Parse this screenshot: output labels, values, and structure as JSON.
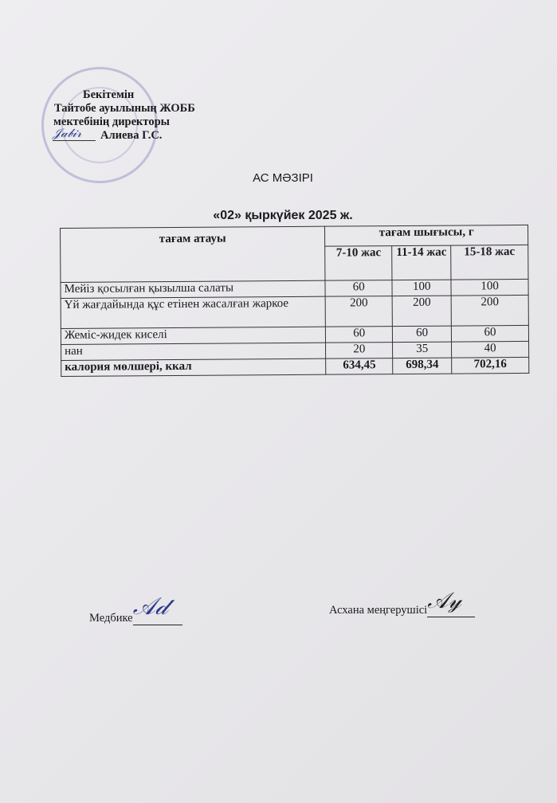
{
  "approval": {
    "line1": "Бекітемін",
    "line2": "Тайтобе ауылының ЖОББ",
    "line3": "мектебінің директоры",
    "line4": "Алиева Г.С."
  },
  "title": "АС МӘЗІРІ",
  "date": "«02»  қыркүйек  2025 ж.",
  "table": {
    "header_name": "тағам атауы",
    "header_output": "тағам шығысы, г",
    "age_groups": [
      "7-10 жас",
      "11-14 жас",
      "15-18 жас"
    ],
    "rows": [
      {
        "name": "Мейіз қосылған қызылша салаты",
        "values": [
          "60",
          "100",
          "100"
        ]
      },
      {
        "name": "Үй жағдайында құс етінен жасалған жаркое",
        "values": [
          "200",
          "200",
          "200"
        ]
      },
      {
        "name": "Жеміс-жидек киселі",
        "values": [
          "60",
          "60",
          "60"
        ]
      },
      {
        "name": "нан",
        "values": [
          "20",
          "35",
          "40"
        ]
      }
    ],
    "total": {
      "name": "калория мөлшері, ккал",
      "values": [
        "634,45",
        "698,34",
        "702,16"
      ]
    }
  },
  "footer": {
    "nurse_label": "Медбике",
    "canteen_label": "Асхана меңгерушісі"
  },
  "colors": {
    "stamp": "#6e6eaf",
    "signature": "#2b3a8a"
  }
}
